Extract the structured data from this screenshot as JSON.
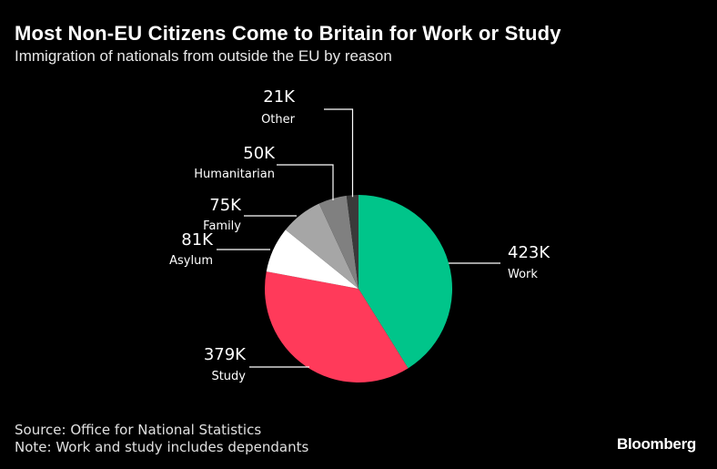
{
  "title": "Most Non-EU Citizens Come to Britain for Work or Study",
  "subtitle": "Immigration of nationals from outside the EU by reason",
  "footer": {
    "source": "Source: Office for National Statistics",
    "note": "Note: Work and study includes dependants"
  },
  "brand": "Bloomberg",
  "chart_data": {
    "type": "pie",
    "slices": [
      {
        "label": "Work",
        "value": 423,
        "display": "423K",
        "color": "#00c58a"
      },
      {
        "label": "Study",
        "value": 379,
        "display": "379K",
        "color": "#ff3a5a"
      },
      {
        "label": "Asylum",
        "value": 81,
        "display": "81K",
        "color": "#ffffff"
      },
      {
        "label": "Family",
        "value": 75,
        "display": "75K",
        "color": "#a6a6a6"
      },
      {
        "label": "Humanitarian",
        "value": 50,
        "display": "50K",
        "color": "#808080"
      },
      {
        "label": "Other",
        "value": 21,
        "display": "21K",
        "color": "#3a3a3a"
      }
    ]
  }
}
